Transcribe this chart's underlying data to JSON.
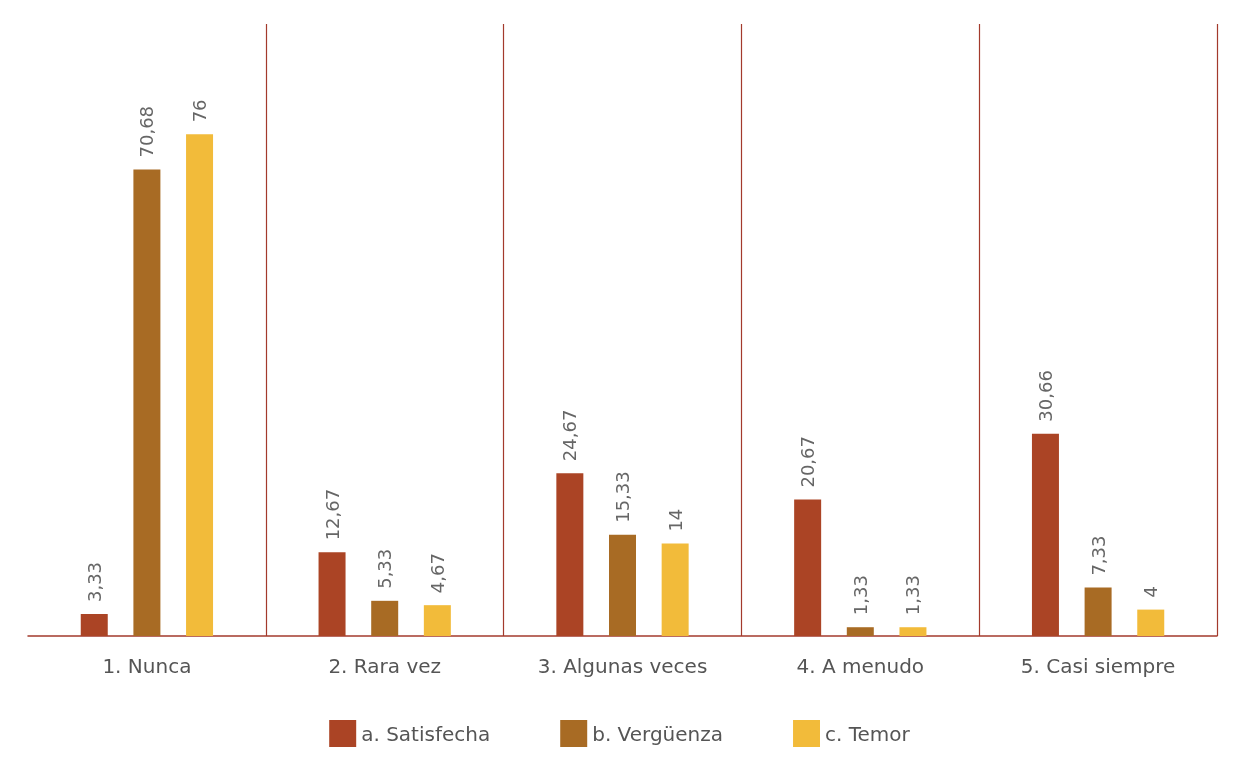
{
  "chart_data": {
    "type": "bar",
    "categories": [
      "1. Nunca",
      "2. Rara vez",
      "3. Algunas veces",
      "4. A menudo",
      "5. Casi siempre"
    ],
    "series": [
      {
        "name": "a. Satisfecha",
        "color": "#ab4425",
        "values": [
          3.33,
          12.67,
          24.67,
          20.67,
          30.66
        ],
        "value_labels": [
          "3,33",
          "12,67",
          "24,67",
          "20,67",
          "30,66"
        ]
      },
      {
        "name": "b. Vergüenza",
        "color": "#a86b24",
        "values": [
          70.68,
          5.33,
          15.33,
          1.33,
          7.33
        ],
        "value_labels": [
          "70,68",
          "5,33",
          "15,33",
          "1,33",
          "7,33"
        ]
      },
      {
        "name": "c. Temor",
        "color": "#f2bb3a",
        "values": [
          76,
          4.67,
          14,
          1.33,
          4
        ],
        "value_labels": [
          "76",
          "4,67",
          "14",
          "1,33",
          "4"
        ]
      }
    ],
    "grid": "x",
    "legend": "bottom"
  }
}
